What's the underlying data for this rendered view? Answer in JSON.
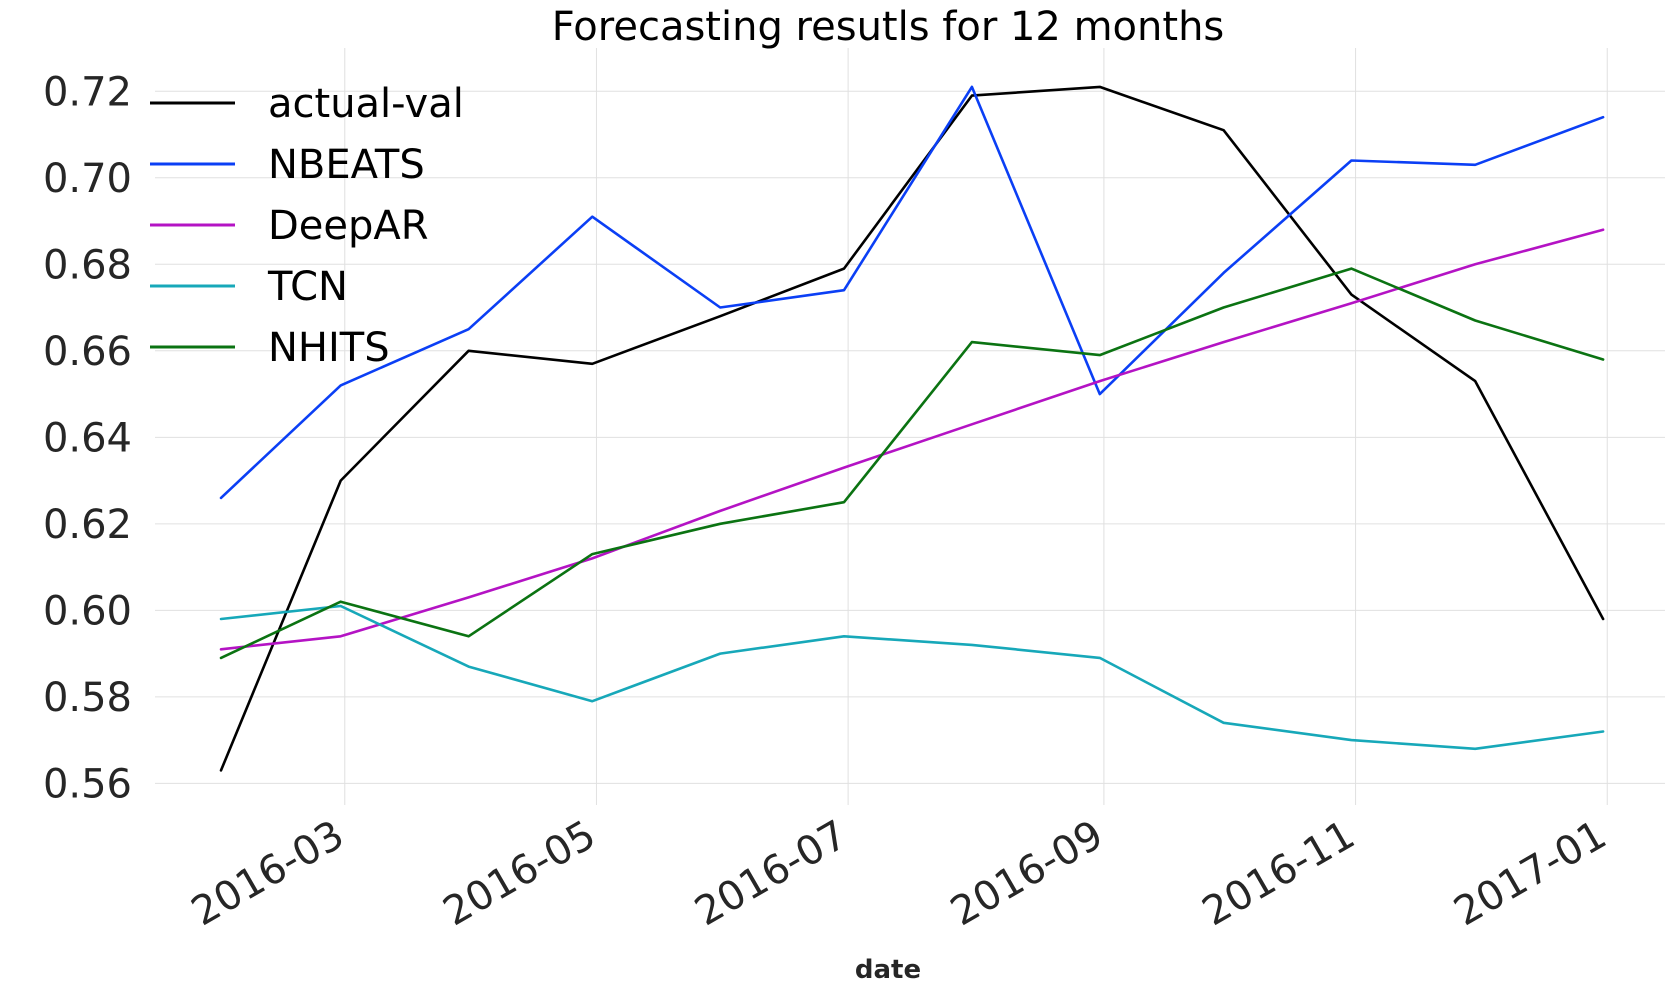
{
  "chart_data": {
    "type": "line",
    "title": "Forecasting resutls for 12 months",
    "xlabel": "date",
    "ylabel": "",
    "ylim": [
      0.555,
      0.73
    ],
    "x": [
      "2016-01-31",
      "2016-02-29",
      "2016-03-31",
      "2016-04-30",
      "2016-05-31",
      "2016-06-30",
      "2016-07-31",
      "2016-08-31",
      "2016-09-30",
      "2016-10-31",
      "2016-11-30",
      "2016-12-31"
    ],
    "xlim": [
      "2016-01-15",
      "2017-01-15"
    ],
    "xticks": [
      "2016-03",
      "2016-05",
      "2016-07",
      "2016-09",
      "2016-11",
      "2017-01"
    ],
    "yticks": [
      "0.56",
      "0.58",
      "0.60",
      "0.62",
      "0.64",
      "0.66",
      "0.68",
      "0.70",
      "0.72"
    ],
    "grid": true,
    "legend_position": "top-left",
    "series": [
      {
        "name": "actual-val",
        "color": "#000000",
        "values": [
          0.563,
          0.63,
          0.66,
          0.657,
          0.668,
          0.679,
          0.719,
          0.721,
          0.711,
          0.673,
          0.653,
          0.598
        ]
      },
      {
        "name": "NBEATS",
        "color": "#0b3ff5",
        "values": [
          0.626,
          0.652,
          0.665,
          0.691,
          0.67,
          0.674,
          0.721,
          0.65,
          0.678,
          0.704,
          0.703,
          0.714
        ]
      },
      {
        "name": "DeepAR",
        "color": "#b413c4",
        "values": [
          0.591,
          0.594,
          0.603,
          0.612,
          0.623,
          0.633,
          0.643,
          0.653,
          0.662,
          0.671,
          0.68,
          0.688
        ]
      },
      {
        "name": "TCN",
        "color": "#17a8b9",
        "values": [
          0.598,
          0.601,
          0.587,
          0.579,
          0.59,
          0.594,
          0.592,
          0.589,
          0.574,
          0.57,
          0.568,
          0.572
        ]
      },
      {
        "name": "NHITS",
        "color": "#0b7312",
        "values": [
          0.589,
          0.602,
          0.594,
          0.613,
          0.62,
          0.625,
          0.662,
          0.659,
          0.67,
          0.679,
          0.667,
          0.658
        ]
      }
    ]
  }
}
